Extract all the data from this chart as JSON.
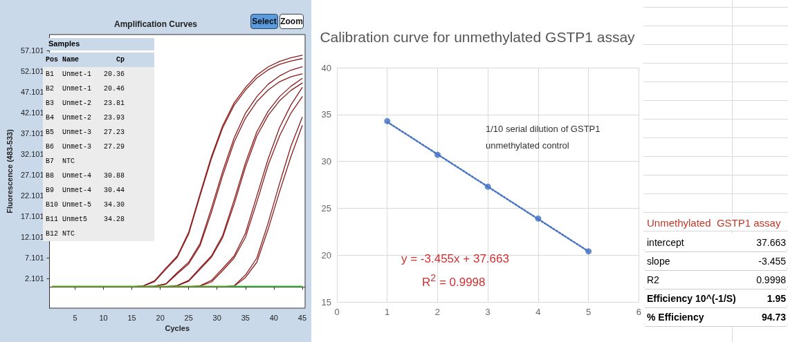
{
  "chart_data": [
    {
      "type": "line",
      "title": "Amplification Curves",
      "xlabel": "Cycles",
      "ylabel": "Fluorescence (483-533)",
      "x": [
        1,
        15,
        17,
        19,
        21,
        23,
        25,
        27,
        29,
        31,
        33,
        35,
        37,
        39,
        41,
        43,
        45
      ],
      "series": [
        {
          "color": "#8b1a1a",
          "values": [
            0.1,
            0.1,
            0.3,
            1.5,
            4.6,
            7.5,
            13.2,
            22.5,
            31.5,
            39,
            44.5,
            48.2,
            51.2,
            53.2,
            54.5,
            55.4,
            56.0
          ]
        },
        {
          "color": "#8b1a1a",
          "values": [
            0.1,
            0.1,
            0.2,
            1.3,
            4.3,
            7.2,
            12.8,
            22,
            31,
            38.5,
            43.9,
            47.6,
            50.5,
            52.5,
            53.8,
            54.6,
            55.2
          ]
        },
        {
          "color": "#8b1a1a",
          "values": [
            0.1,
            0.1,
            0.1,
            0.2,
            0.8,
            3.5,
            6.0,
            10.5,
            19,
            28,
            36,
            42,
            46,
            49,
            51,
            52.4,
            53.2
          ]
        },
        {
          "color": "#8b1a1a",
          "values": [
            0.1,
            0.1,
            0.1,
            0.2,
            0.7,
            3.2,
            5.6,
            10,
            18,
            27,
            35,
            40.8,
            44.8,
            47.6,
            49.6,
            50.8,
            51.5
          ]
        },
        {
          "color": "#8b1a1a",
          "values": [
            0.1,
            0.1,
            0.1,
            0.1,
            0.1,
            0.4,
            1.6,
            4.6,
            7.5,
            12.5,
            21,
            30,
            37.5,
            42.5,
            46,
            48.5,
            50.4
          ]
        },
        {
          "color": "#8b1a1a",
          "values": [
            0.1,
            0.1,
            0.1,
            0.1,
            0.1,
            0.3,
            1.4,
            4.3,
            7.2,
            12,
            20,
            29,
            36.5,
            41.5,
            45,
            47.5,
            49.3
          ]
        },
        {
          "color": "#8b1a1a",
          "values": [
            0.1,
            0.1,
            0.1,
            0.1,
            0.1,
            0.1,
            0.1,
            0.3,
            1.6,
            4.5,
            7.5,
            13,
            22,
            31,
            38.5,
            44,
            48.2
          ]
        },
        {
          "color": "#8b1a1a",
          "values": [
            0.1,
            0.1,
            0.1,
            0.1,
            0.1,
            0.1,
            0.1,
            0.2,
            1.2,
            4.0,
            7.0,
            12,
            20.5,
            29.5,
            36.5,
            42,
            46.0
          ]
        },
        {
          "color": "#8b1a1a",
          "values": [
            0.1,
            0.1,
            0.1,
            0.1,
            0.1,
            0.1,
            0.1,
            0.1,
            0.1,
            0.1,
            0.3,
            2.9,
            7,
            15.5,
            25,
            34,
            41
          ]
        },
        {
          "color": "#8b1a1a",
          "values": [
            0.1,
            0.1,
            0.1,
            0.1,
            0.1,
            0.1,
            0.1,
            0.1,
            0.1,
            0.1,
            0.2,
            2.3,
            6,
            14,
            23,
            31.5,
            39
          ]
        },
        {
          "color": "#33dd33",
          "values": [
            0.2,
            0.2,
            0.2,
            0.2,
            0.2,
            0.2,
            0.2,
            0.2,
            0.2,
            0.2,
            0.2,
            0.2,
            0.2,
            0.2,
            0.2,
            0.2,
            0.2
          ]
        }
      ],
      "xlim": [
        0.5,
        45.5
      ],
      "xticks": [
        5,
        10,
        15,
        20,
        25,
        30,
        35,
        40,
        45
      ],
      "ylim": [
        -5.1,
        61
      ],
      "yticks": [
        2.101,
        7.101,
        12.101,
        17.101,
        22.101,
        27.101,
        32.101,
        37.101,
        42.101,
        47.101,
        52.101,
        57.101
      ],
      "marker": "none",
      "line_style": "solid",
      "annotations": [
        "Select",
        "Zoom",
        "Samples",
        "Pos Name         Cp",
        "B1  Unmet-1   20.36",
        "B2  Unmet-1   20.46",
        "B3  Unmet-2   23.81",
        "B4  Unmet-2   23.93",
        "B5  Unmet-3   27.23",
        "B6  Unmet-3   27.29",
        "B7  NTC",
        "B8  Unmet-4   30.88",
        "B9  Unmet-4   30.44",
        "B10 Unmet-5   34.30",
        "B11 Unmet5    34.28",
        "B12 NTC"
      ]
    },
    {
      "type": "scatter",
      "title": "Calibration curve for unmethylated GSTP1 assay",
      "series": [
        {
          "type": "scatter",
          "color": "#4472c4",
          "marker": "circle",
          "x": [
            1,
            2,
            3,
            4,
            5
          ],
          "values": [
            34.3,
            30.7,
            27.3,
            23.9,
            20.4
          ]
        },
        {
          "type": "line",
          "color": "#4472c4",
          "marker": "none",
          "line_style": "dotted",
          "x": [
            1,
            5
          ],
          "values": [
            34.21,
            20.39
          ]
        }
      ],
      "xlim": [
        0,
        6
      ],
      "xticks": [
        0,
        1,
        2,
        3,
        4,
        5,
        6
      ],
      "ylim": [
        15,
        40
      ],
      "yticks": [
        15,
        20,
        25,
        30,
        35,
        40
      ],
      "grid": true,
      "annotations": [
        "1/10 serial dilution of GSTP1",
        "unmethylated control",
        "y = -3.455x + 37.663",
        "R$^{2}$ = 0.9998"
      ]
    },
    {
      "type": "other",
      "title": "Unmethylated  GSTP1 assay",
      "annotations": [
        "intercept",
        "37.663",
        "slope",
        "-3.455",
        "R2",
        "0.9998",
        "Efficiency 10^(-1/S)",
        "1.95",
        "% Efficiency",
        "94.73"
      ]
    }
  ]
}
